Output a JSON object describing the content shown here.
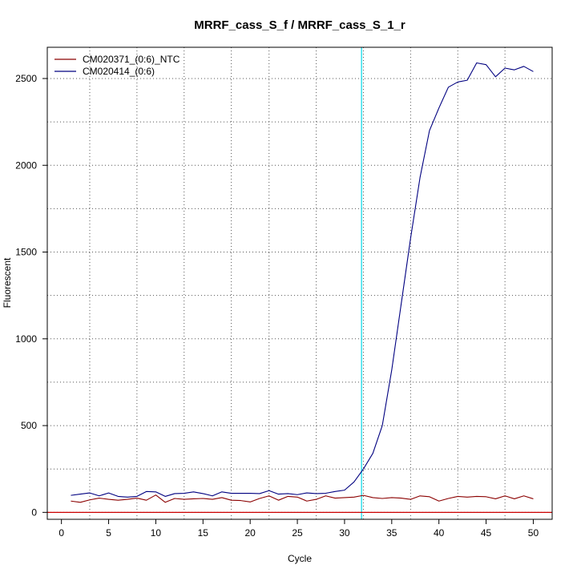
{
  "chart_data": {
    "type": "line",
    "title": "MRRF_cass_S_f / MRRF_cass_S_1_r",
    "xlabel": "Cycle",
    "ylabel": "Fluorescent",
    "xlim": [
      -1.5,
      52
    ],
    "ylim": [
      -40,
      2680
    ],
    "xticks": [
      0,
      5,
      10,
      15,
      20,
      25,
      30,
      35,
      40,
      45,
      50
    ],
    "yticks": [
      0,
      500,
      1000,
      1500,
      2000,
      2500
    ],
    "grid": true,
    "grid_style": "dotted",
    "grid_x": [
      3,
      8,
      13,
      18,
      22,
      27,
      32,
      37,
      42,
      47
    ],
    "grid_y": [
      0,
      250,
      500,
      750,
      1000,
      1250,
      1500,
      1750,
      2000,
      2250,
      2500
    ],
    "legend_position": "top-left",
    "threshold": {
      "x": 31.8,
      "color": "#00d7e8"
    },
    "baseline": {
      "y": 0,
      "color": "#cc0000"
    },
    "series": [
      {
        "name": "CM020371_(0:6)_NTC",
        "color": "#8b0000",
        "x": [
          1,
          2,
          3,
          4,
          5,
          6,
          7,
          8,
          9,
          10,
          11,
          12,
          13,
          14,
          15,
          16,
          17,
          18,
          19,
          20,
          21,
          22,
          23,
          24,
          25,
          26,
          27,
          28,
          29,
          30,
          31,
          32,
          33,
          34,
          35,
          36,
          37,
          38,
          39,
          40,
          41,
          42,
          43,
          44,
          45,
          46,
          47,
          48,
          49,
          50
        ],
        "values": [
          65,
          58,
          72,
          82,
          75,
          70,
          75,
          82,
          70,
          100,
          58,
          80,
          75,
          78,
          80,
          75,
          85,
          70,
          68,
          60,
          80,
          95,
          70,
          92,
          88,
          65,
          75,
          95,
          82,
          85,
          88,
          98,
          85,
          80,
          85,
          82,
          75,
          95,
          90,
          65,
          80,
          92,
          88,
          92,
          90,
          78,
          95,
          78,
          95,
          78
        ]
      },
      {
        "name": "CM020414_(0:6)",
        "color": "#000080",
        "x": [
          1,
          2,
          3,
          4,
          5,
          6,
          7,
          8,
          9,
          10,
          11,
          12,
          13,
          14,
          15,
          16,
          17,
          18,
          19,
          20,
          21,
          22,
          23,
          24,
          25,
          26,
          27,
          28,
          29,
          30,
          31,
          32,
          33,
          34,
          35,
          36,
          37,
          38,
          39,
          40,
          41,
          42,
          43,
          44,
          45,
          46,
          47,
          48,
          49,
          50
        ],
        "values": [
          98,
          105,
          112,
          95,
          112,
          92,
          88,
          92,
          120,
          118,
          92,
          108,
          110,
          118,
          108,
          95,
          118,
          110,
          110,
          110,
          108,
          125,
          105,
          108,
          102,
          112,
          108,
          110,
          120,
          128,
          175,
          250,
          340,
          500,
          820,
          1200,
          1580,
          1930,
          2200,
          2330,
          2450,
          2480,
          2490,
          2590,
          2580,
          2510,
          2560,
          2550,
          2570,
          2540
        ]
      }
    ]
  }
}
